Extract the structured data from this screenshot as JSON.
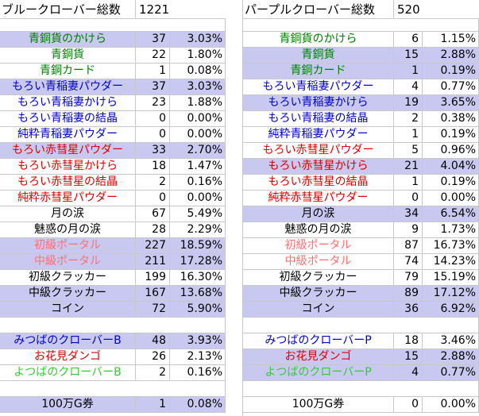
{
  "colors": {
    "green": "#008000",
    "darkgreen": "#006400",
    "blue": "#0000cc",
    "red": "#e00000",
    "salmon": "#ff7070",
    "brightgreen": "#33cc33",
    "black": "#000000",
    "fill": "#c8c8f0"
  },
  "left": {
    "title": "ブルークローバー総数",
    "total": "1221",
    "rows": [
      {
        "label": "青銅貨のかけら",
        "count": "37",
        "pct": "3.03%",
        "color": "green",
        "fill": true
      },
      {
        "label": "青銅貨",
        "count": "22",
        "pct": "1.80%",
        "color": "green",
        "fill": false
      },
      {
        "label": "青銅カード",
        "count": "1",
        "pct": "0.08%",
        "color": "green",
        "fill": false
      },
      {
        "label": "もろい青稲妻パウダー",
        "count": "37",
        "pct": "3.03%",
        "color": "blue",
        "fill": true
      },
      {
        "label": "もろい青稲妻かけら",
        "count": "23",
        "pct": "1.88%",
        "color": "blue",
        "fill": false
      },
      {
        "label": "もろい青稲妻の結晶",
        "count": "0",
        "pct": "0.00%",
        "color": "blue",
        "fill": false
      },
      {
        "label": "純粋青稲妻パウダー",
        "count": "0",
        "pct": "0.00%",
        "color": "blue",
        "fill": false
      },
      {
        "label": "もろい赤彗星パウダー",
        "count": "33",
        "pct": "2.70%",
        "color": "red",
        "fill": true
      },
      {
        "label": "もろい赤彗星かけら",
        "count": "18",
        "pct": "1.47%",
        "color": "red",
        "fill": false
      },
      {
        "label": "もろい赤彗星の結晶",
        "count": "2",
        "pct": "0.16%",
        "color": "red",
        "fill": false
      },
      {
        "label": "純粋赤彗星パウダー",
        "count": "0",
        "pct": "0.00%",
        "color": "red",
        "fill": false
      },
      {
        "label": "月の涙",
        "count": "67",
        "pct": "5.49%",
        "color": "black",
        "fill": false
      },
      {
        "label": "魅惑の月の涙",
        "count": "28",
        "pct": "2.29%",
        "color": "black",
        "fill": false
      },
      {
        "label": "初級ポータル",
        "count": "227",
        "pct": "18.59%",
        "color": "salmon",
        "fill": true
      },
      {
        "label": "中級ポータル",
        "count": "211",
        "pct": "17.28%",
        "color": "salmon",
        "fill": true
      },
      {
        "label": "初級クラッカー",
        "count": "199",
        "pct": "16.30%",
        "color": "black",
        "fill": false
      },
      {
        "label": "中級クラッカー",
        "count": "167",
        "pct": "13.68%",
        "color": "black",
        "fill": true
      },
      {
        "label": "コイン",
        "count": "72",
        "pct": "5.90%",
        "color": "black",
        "fill": true
      }
    ],
    "extra": [
      {
        "label": "みつばのクローバーB",
        "count": "48",
        "pct": "3.93%",
        "color": "blue",
        "fill": true
      },
      {
        "label": "お花見ダンゴ",
        "count": "26",
        "pct": "2.13%",
        "color": "red",
        "fill": false
      },
      {
        "label": "よつばのクローバーB",
        "count": "2",
        "pct": "0.16%",
        "color": "brightgreen",
        "fill": false
      }
    ],
    "ticket": {
      "label": "100万G券",
      "count": "1",
      "pct": "0.08%",
      "color": "black",
      "fill": true
    }
  },
  "right": {
    "title": "パープルクローバー総数",
    "total": "520",
    "rows": [
      {
        "label": "青銅貨のかけら",
        "count": "6",
        "pct": "1.15%",
        "color": "green",
        "fill": false
      },
      {
        "label": "青銅貨",
        "count": "15",
        "pct": "2.88%",
        "color": "green",
        "fill": true
      },
      {
        "label": "青銅カード",
        "count": "1",
        "pct": "0.19%",
        "color": "green",
        "fill": true
      },
      {
        "label": "もろい青稲妻パウダー",
        "count": "4",
        "pct": "0.77%",
        "color": "blue",
        "fill": false
      },
      {
        "label": "もろい青稲妻かけら",
        "count": "19",
        "pct": "3.65%",
        "color": "blue",
        "fill": true
      },
      {
        "label": "もろい青稲妻の結晶",
        "count": "2",
        "pct": "0.38%",
        "color": "blue",
        "fill": false
      },
      {
        "label": "純粋青稲妻パウダー",
        "count": "1",
        "pct": "0.19%",
        "color": "blue",
        "fill": false
      },
      {
        "label": "もろい赤彗星パウダー",
        "count": "5",
        "pct": "0.96%",
        "color": "red",
        "fill": false
      },
      {
        "label": "もろい赤彗星かけら",
        "count": "21",
        "pct": "4.04%",
        "color": "red",
        "fill": true
      },
      {
        "label": "もろい赤彗星の結晶",
        "count": "1",
        "pct": "0.19%",
        "color": "red",
        "fill": false
      },
      {
        "label": "純粋赤彗星パウダー",
        "count": "0",
        "pct": "0.00%",
        "color": "red",
        "fill": false
      },
      {
        "label": "月の涙",
        "count": "34",
        "pct": "6.54%",
        "color": "black",
        "fill": true
      },
      {
        "label": "魅惑の月の涙",
        "count": "9",
        "pct": "1.73%",
        "color": "black",
        "fill": false
      },
      {
        "label": "初級ポータル",
        "count": "87",
        "pct": "16.73%",
        "color": "salmon",
        "fill": false
      },
      {
        "label": "中級ポータル",
        "count": "74",
        "pct": "14.23%",
        "color": "salmon",
        "fill": false
      },
      {
        "label": "初級クラッカー",
        "count": "79",
        "pct": "15.19%",
        "color": "black",
        "fill": false
      },
      {
        "label": "中級クラッカー",
        "count": "89",
        "pct": "17.12%",
        "color": "black",
        "fill": true
      },
      {
        "label": "コイン",
        "count": "36",
        "pct": "6.92%",
        "color": "black",
        "fill": true
      }
    ],
    "extra": [
      {
        "label": "みつばのクローバーP",
        "count": "18",
        "pct": "3.46%",
        "color": "blue",
        "fill": false
      },
      {
        "label": "お花見ダンゴ",
        "count": "15",
        "pct": "2.88%",
        "color": "red",
        "fill": true
      },
      {
        "label": "よつばのクローバーP",
        "count": "4",
        "pct": "0.77%",
        "color": "brightgreen",
        "fill": true
      }
    ],
    "ticket": {
      "label": "100万G券",
      "count": "0",
      "pct": "0.00%",
      "color": "black",
      "fill": false
    }
  }
}
